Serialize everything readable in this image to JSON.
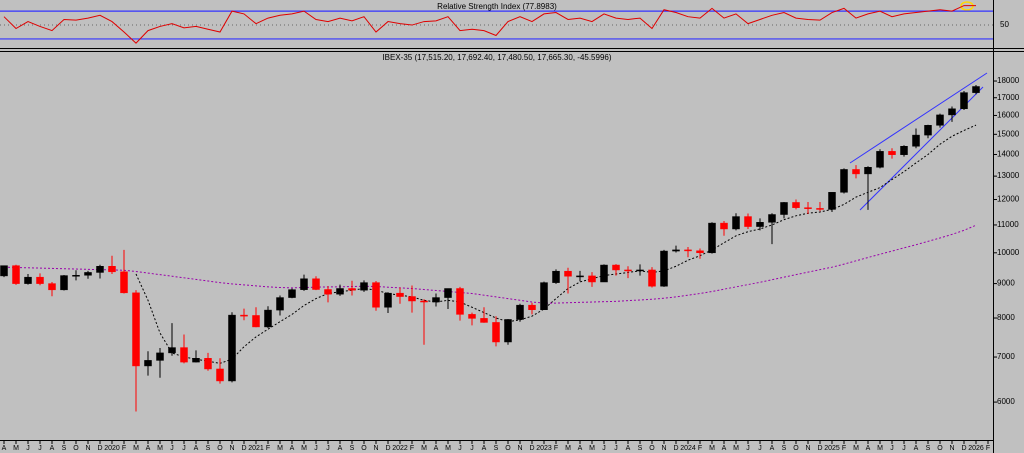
{
  "chart_data": [
    {
      "type": "line",
      "title": "Relative Strength Index (77.8983)",
      "color": "#e00000",
      "ylim": [
        17,
        86
      ],
      "yticks": [
        50
      ],
      "levels": [
        30,
        70
      ],
      "level_color": "#3333ff",
      "values": [
        62,
        45,
        55,
        48,
        42,
        58,
        57,
        60,
        64,
        55,
        40,
        24,
        42,
        48,
        52,
        46,
        48,
        44,
        40,
        70,
        66,
        52,
        60,
        64,
        66,
        70,
        58,
        55,
        60,
        56,
        62,
        40,
        55,
        52,
        50,
        55,
        56,
        62,
        42,
        44,
        42,
        35,
        55,
        62,
        55,
        66,
        68,
        58,
        60,
        55,
        66,
        60,
        58,
        60,
        45,
        72,
        68,
        62,
        60,
        74,
        60,
        66,
        52,
        58,
        64,
        68,
        60,
        58,
        57,
        68,
        74,
        60,
        66,
        70,
        62,
        66,
        68,
        70,
        72,
        70,
        78,
        77.8983,
        null
      ]
    },
    {
      "type": "candlestick",
      "title": "IBEX-35 (17,515.20, 17,692.40, 17,480.50, 17,665.30, -45.5996)",
      "log_scale": true,
      "ylim": [
        5270,
        19880
      ],
      "yticks": [
        6000,
        7000,
        8000,
        9000,
        10000,
        11000,
        12000,
        13000,
        14000,
        15000,
        16000,
        17000,
        18000
      ],
      "up_color": "#000000",
      "down_color": "#ff0000",
      "categories": [
        "A",
        "M",
        "J",
        "J",
        "A",
        "S",
        "O",
        "N",
        "D",
        "2020",
        "F",
        "M",
        "A",
        "M",
        "J",
        "J",
        "A",
        "S",
        "O",
        "N",
        "D",
        "2021",
        "F",
        "M",
        "A",
        "M",
        "J",
        "J",
        "A",
        "S",
        "O",
        "N",
        "D",
        "2022",
        "F",
        "M",
        "A",
        "M",
        "J",
        "J",
        "A",
        "S",
        "O",
        "N",
        "D",
        "2023",
        "F",
        "M",
        "A",
        "M",
        "J",
        "J",
        "A",
        "S",
        "O",
        "N",
        "D",
        "2024",
        "F",
        "M",
        "A",
        "M",
        "J",
        "J",
        "A",
        "S",
        "O",
        "N",
        "D",
        "2025",
        "F",
        "M",
        "A",
        "M",
        "J",
        "J",
        "A",
        "S",
        "O",
        "N",
        "D",
        "2026",
        "F"
      ],
      "open": [
        9240,
        9570,
        9000,
        9200,
        9000,
        8810,
        9250,
        9260,
        9350,
        9550,
        9370,
        8720,
        6790,
        6920,
        7100,
        7230,
        6880,
        6970,
        6720,
        6450,
        8080,
        8070,
        7760,
        8220,
        8580,
        8815,
        9150,
        8820,
        8680,
        8850,
        8800,
        9030,
        8300,
        8710,
        8610,
        8480,
        8450,
        8580,
        8850,
        8100,
        7990,
        7880,
        7370,
        7960,
        8360,
        8230,
        9030,
        9390,
        9230,
        9240,
        9050,
        9590,
        9430,
        9400,
        9430,
        8920,
        10060,
        10100,
        10070,
        10000,
        11070,
        10850,
        11320,
        10940,
        11100,
        11400,
        11880,
        11670,
        11640,
        11600,
        12300,
        13300,
        13100,
        13400,
        14150,
        13990,
        14400,
        14960,
        15470,
        16030,
        16370,
        17300,
        null
      ],
      "high": [
        9570,
        9600,
        9300,
        9320,
        9050,
        9270,
        9420,
        9400,
        9600,
        9900,
        10100,
        8800,
        7140,
        7220,
        7860,
        7560,
        7160,
        7100,
        6970,
        8160,
        8260,
        8300,
        8330,
        8640,
        8850,
        9280,
        9230,
        8920,
        8970,
        9090,
        9100,
        9080,
        8740,
        8880,
        8940,
        8530,
        8700,
        8850,
        8900,
        8150,
        8300,
        8050,
        7970,
        8400,
        8430,
        9060,
        9450,
        9500,
        9400,
        9360,
        9610,
        9620,
        9550,
        9610,
        9520,
        10100,
        10250,
        10200,
        10150,
        11100,
        11150,
        11450,
        11440,
        11250,
        11450,
        11900,
        12000,
        11900,
        11900,
        12300,
        13350,
        13500,
        13450,
        14250,
        14300,
        14450,
        15300,
        15500,
        16100,
        16500,
        17400,
        17760,
        null
      ],
      "low": [
        9200,
        8960,
        8970,
        8950,
        8620,
        8790,
        9100,
        9150,
        9160,
        9300,
        8700,
        5810,
        6570,
        6520,
        7030,
        6850,
        6870,
        6680,
        6390,
        6420,
        7940,
        7750,
        7730,
        8070,
        8560,
        8780,
        8800,
        8440,
        8630,
        8640,
        8750,
        8200,
        8140,
        8400,
        8150,
        7300,
        8320,
        8250,
        7930,
        7800,
        7870,
        7260,
        7300,
        7900,
        8100,
        8230,
        8990,
        8700,
        9070,
        8900,
        9050,
        9250,
        9170,
        9250,
        8880,
        8900,
        10010,
        9850,
        9800,
        9970,
        10600,
        10800,
        10850,
        10800,
        10300,
        11250,
        11600,
        11420,
        11530,
        11500,
        12250,
        12900,
        11580,
        13350,
        13800,
        13900,
        14300,
        14800,
        15350,
        15650,
        16300,
        17200,
        null
      ],
      "close": [
        9570,
        9000,
        9200,
        9000,
        8810,
        9250,
        9260,
        9350,
        9550,
        9370,
        8720,
        6790,
        6920,
        7100,
        7230,
        6880,
        6970,
        6720,
        6450,
        8080,
        8070,
        7760,
        8220,
        8580,
        8815,
        9150,
        8820,
        8680,
        8850,
        8800,
        9030,
        8300,
        8710,
        8610,
        8480,
        8450,
        8580,
        8850,
        8100,
        7990,
        7880,
        7370,
        7960,
        8360,
        8230,
        9030,
        9390,
        9230,
        9240,
        9050,
        9590,
        9430,
        9400,
        9430,
        8920,
        10060,
        10100,
        10070,
        10000,
        11070,
        10850,
        11320,
        10940,
        11100,
        11400,
        11880,
        11670,
        11640,
        11600,
        12300,
        13300,
        13100,
        13400,
        14150,
        13990,
        14400,
        14960,
        15470,
        16030,
        16370,
        17300,
        17665.3,
        null
      ],
      "moving_averages": [
        {
          "color": "#000000",
          "dash": true,
          "values": [
            null,
            null,
            null,
            null,
            null,
            null,
            null,
            null,
            null,
            null,
            null,
            9300,
            8500,
            7600,
            7100,
            7000,
            6950,
            6900,
            6850,
            6950,
            7250,
            7500,
            7700,
            7900,
            8100,
            8350,
            8550,
            8700,
            8750,
            8800,
            8850,
            8800,
            8700,
            8650,
            8600,
            8500,
            8450,
            8500,
            8450,
            8300,
            8150,
            8000,
            7900,
            7950,
            8050,
            8250,
            8550,
            8850,
            9050,
            9150,
            9250,
            9300,
            9350,
            9400,
            9350,
            9400,
            9550,
            9750,
            9900,
            10100,
            10350,
            10600,
            10750,
            10850,
            11000,
            11200,
            11350,
            11450,
            11500,
            11600,
            11800,
            12100,
            12300,
            12500,
            12850,
            13200,
            13600,
            14000,
            14500,
            14900,
            15200,
            15480,
            null
          ]
        },
        {
          "color": "#9900aa",
          "dash": true,
          "values": [
            9520,
            9510,
            9500,
            9490,
            9480,
            9470,
            9460,
            9450,
            9440,
            9430,
            9420,
            9380,
            9330,
            9280,
            9230,
            9180,
            9130,
            9080,
            9030,
            8990,
            8960,
            8930,
            8900,
            8880,
            8870,
            8880,
            8890,
            8900,
            8900,
            8910,
            8920,
            8910,
            8890,
            8870,
            8850,
            8820,
            8790,
            8760,
            8730,
            8700,
            8650,
            8600,
            8550,
            8500,
            8450,
            8420,
            8420,
            8430,
            8440,
            8450,
            8460,
            8470,
            8490,
            8510,
            8530,
            8560,
            8600,
            8650,
            8700,
            8760,
            8830,
            8900,
            8970,
            9040,
            9120,
            9200,
            9280,
            9360,
            9440,
            9520,
            9620,
            9730,
            9840,
            9950,
            10060,
            10170,
            10280,
            10400,
            10520,
            10650,
            10800,
            10990,
            null
          ]
        }
      ]
    }
  ]
}
